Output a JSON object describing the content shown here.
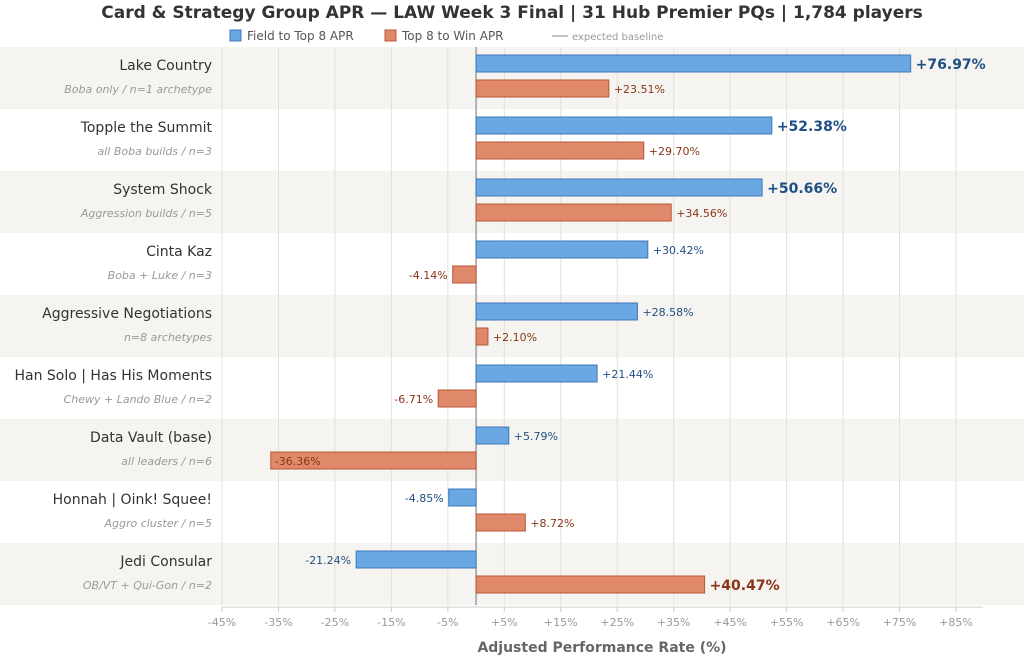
{
  "chart_data": {
    "type": "bar",
    "orientation": "horizontal",
    "title": "Card & Strategy Group APR — LAW Week 3 Final  |  31 Hub Premier PQs  |  1,784 players",
    "xlabel": "Adjusted Performance Rate (%)",
    "xlim": [
      -45,
      90
    ],
    "xticks": [
      "-45%",
      "-35%",
      "-25%",
      "-15%",
      "-5%",
      "+5%",
      "+15%",
      "+25%",
      "+35%",
      "+45%",
      "+55%",
      "+65%",
      "+75%",
      "+85%"
    ],
    "xtick_values": [
      -45,
      -35,
      -25,
      -15,
      -5,
      5,
      15,
      25,
      35,
      45,
      55,
      65,
      75,
      85
    ],
    "grid": true,
    "legend_placement": "top",
    "legend": [
      "Field to Top 8 APR",
      "Top 8 to Win APR",
      "expected baseline"
    ],
    "colors": {
      "field": "#6aa8e4",
      "field_edge": "#3f78b8",
      "win": "#e0896a",
      "win_edge": "#b8573a",
      "field_text": "#1f4e85",
      "win_text": "#8a3418",
      "row_alt": "#f5f4f0"
    },
    "categories": [
      {
        "name": "Lake Country",
        "sub": "Boba only / n=1 archetype"
      },
      {
        "name": "Topple the Summit",
        "sub": "all Boba builds / n=3"
      },
      {
        "name": "System Shock",
        "sub": "Aggression builds / n=5"
      },
      {
        "name": "Cinta Kaz",
        "sub": "Boba + Luke / n=3"
      },
      {
        "name": "Aggressive Negotiations",
        "sub": "n=8 archetypes"
      },
      {
        "name": "Han Solo | Has His Moments",
        "sub": "Chewy + Lando Blue / n=2"
      },
      {
        "name": "Data Vault (base)",
        "sub": "all leaders / n=6"
      },
      {
        "name": "Honnah | Oink! Squee!",
        "sub": "Aggro cluster / n=5"
      },
      {
        "name": "Jedi Consular",
        "sub": "OB/VT + Qui-Gon / n=2"
      }
    ],
    "series": [
      {
        "name": "Field to Top 8 APR",
        "values": [
          76.97,
          52.38,
          50.66,
          30.42,
          28.58,
          21.44,
          5.79,
          -4.85,
          -21.24
        ],
        "labels": [
          "+76.97%",
          "+52.38%",
          "+50.66%",
          "+30.42%",
          "+28.58%",
          "+21.44%",
          "+5.79%",
          "-4.85%",
          "-21.24%"
        ]
      },
      {
        "name": "Top 8 to Win APR",
        "values": [
          23.51,
          29.7,
          34.56,
          -4.14,
          2.1,
          -6.71,
          -36.36,
          8.72,
          40.47
        ],
        "labels": [
          "+23.51%",
          "+29.70%",
          "+34.56%",
          "-4.14%",
          "+2.10%",
          "-6.71%",
          "-36.36%",
          "+8.72%",
          "+40.47%"
        ]
      }
    ]
  }
}
